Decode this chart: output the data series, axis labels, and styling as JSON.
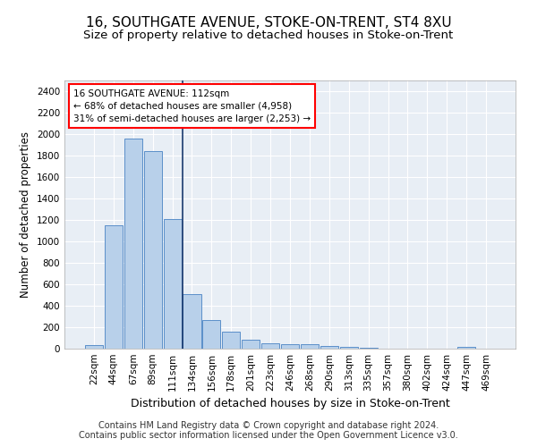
{
  "title1": "16, SOUTHGATE AVENUE, STOKE-ON-TRENT, ST4 8XU",
  "title2": "Size of property relative to detached houses in Stoke-on-Trent",
  "xlabel": "Distribution of detached houses by size in Stoke-on-Trent",
  "ylabel": "Number of detached properties",
  "footnote": "Contains HM Land Registry data © Crown copyright and database right 2024.\nContains public sector information licensed under the Open Government Licence v3.0.",
  "bar_labels": [
    "22sqm",
    "44sqm",
    "67sqm",
    "89sqm",
    "111sqm",
    "134sqm",
    "156sqm",
    "178sqm",
    "201sqm",
    "223sqm",
    "246sqm",
    "268sqm",
    "290sqm",
    "313sqm",
    "335sqm",
    "357sqm",
    "380sqm",
    "402sqm",
    "424sqm",
    "447sqm",
    "469sqm"
  ],
  "bar_values": [
    30,
    1150,
    1960,
    1840,
    1210,
    510,
    265,
    155,
    80,
    50,
    45,
    40,
    25,
    20,
    10,
    0,
    0,
    0,
    0,
    20,
    0
  ],
  "bar_color": "#b8d0ea",
  "bar_edge_color": "#5b8fc9",
  "vline_x_index": 4,
  "vline_color": "#1a3a6e",
  "annotation_text": "16 SOUTHGATE AVENUE: 112sqm\n← 68% of detached houses are smaller (4,958)\n31% of semi-detached houses are larger (2,253) →",
  "ylim": [
    0,
    2500
  ],
  "yticks": [
    0,
    200,
    400,
    600,
    800,
    1000,
    1200,
    1400,
    1600,
    1800,
    2000,
    2200,
    2400
  ],
  "bg_color": "#e8eef5",
  "grid_color": "#ffffff",
  "title1_fontsize": 11,
  "title2_fontsize": 9.5,
  "xlabel_fontsize": 9,
  "ylabel_fontsize": 8.5,
  "tick_fontsize": 7.5,
  "footnote_fontsize": 7
}
